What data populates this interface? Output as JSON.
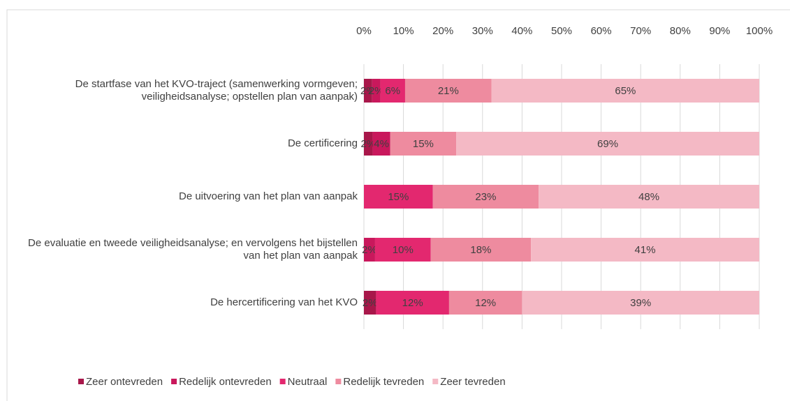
{
  "chart_data": {
    "type": "stacked_barh",
    "normalize": true,
    "categories": [
      "De startfase van het KVO-traject (samenwerking vormgeven; veiligheidsanalyse; opstellen plan van aanpak)",
      "De certificering",
      "De uitvoering van het plan van aanpak",
      "De evaluatie en tweede veiligheidsanalyse; en vervolgens het bijstellen van het plan van aanpak",
      "De hercertificering van het KVO"
    ],
    "series": [
      {
        "name": "Zeer ontevreden",
        "color": "#a8174a",
        "values": [
          2,
          2,
          null,
          null,
          2
        ],
        "value_labels": [
          "2%",
          "2%",
          null,
          null,
          "2%"
        ]
      },
      {
        "name": "Redelijk ontevreden",
        "color": "#c9185c",
        "values": [
          2,
          4,
          null,
          2,
          null
        ],
        "value_labels": [
          "2%",
          "4%",
          null,
          "2%",
          null
        ]
      },
      {
        "name": "Neutraal",
        "color": "#e3286f",
        "values": [
          6,
          null,
          15,
          10,
          12
        ],
        "value_labels": [
          "6%",
          null,
          "15%",
          "10%",
          "12%"
        ]
      },
      {
        "name": "Redelijk tevreden",
        "color": "#ee8b9f",
        "values": [
          21,
          15,
          23,
          18,
          12
        ],
        "value_labels": [
          "21%",
          "15%",
          "23%",
          "18%",
          "12%"
        ]
      },
      {
        "name": "Zeer tevreden",
        "color": "#f4b9c5",
        "values": [
          65,
          69,
          48,
          41,
          39
        ],
        "value_labels": [
          "65%",
          "69%",
          "48%",
          "41%",
          "39%"
        ]
      }
    ],
    "xlim": [
      0,
      100
    ],
    "xticks": [
      {
        "value": 0,
        "label": "0%"
      },
      {
        "value": 10,
        "label": "10%"
      },
      {
        "value": 20,
        "label": "20%"
      },
      {
        "value": 30,
        "label": "30%"
      },
      {
        "value": 40,
        "label": "40%"
      },
      {
        "value": 50,
        "label": "50%"
      },
      {
        "value": 60,
        "label": "60%"
      },
      {
        "value": 70,
        "label": "70%"
      },
      {
        "value": 80,
        "label": "80%"
      },
      {
        "value": 90,
        "label": "90%"
      },
      {
        "value": 100,
        "label": "100%"
      }
    ],
    "grid": true,
    "legend": "bottom"
  }
}
